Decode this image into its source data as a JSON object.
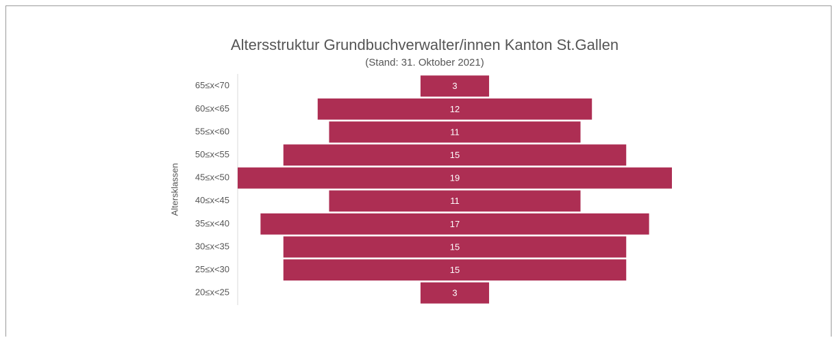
{
  "chart_data": {
    "type": "bar",
    "orientation": "horizontal-centered",
    "title": "Altersstruktur Grundbuchverwalter/innen Kanton St.Gallen",
    "subtitle": "(Stand: 31. Oktober 2021)",
    "y_label": "Altersklassen",
    "categories": [
      "65≤x<70",
      "60≤x<65",
      "55≤x<60",
      "50≤x<55",
      "45≤x<50",
      "40≤x<45",
      "35≤x<40",
      "30≤x<35",
      "25≤x<30",
      "20≤x<25"
    ],
    "values": [
      3,
      12,
      11,
      15,
      19,
      11,
      17,
      15,
      15,
      3
    ],
    "color": "#ad2e53"
  }
}
